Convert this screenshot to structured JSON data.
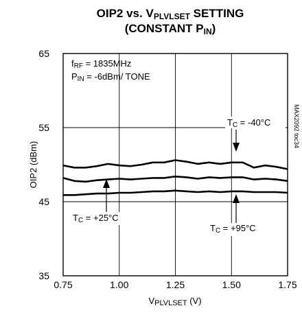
{
  "chart_data": {
    "type": "line",
    "title_line1": "OIP2 vs. VPLVLSET SETTING",
    "title_line2": "(CONSTANT PIN)",
    "xlabel": "VPLVLSET (V)",
    "ylabel": "OIP2 (dBm)",
    "xlim": [
      0.75,
      1.75
    ],
    "ylim": [
      35,
      65
    ],
    "xticks": [
      "0.75",
      "1.00",
      "1.25",
      "1.50",
      "1.75"
    ],
    "yticks": [
      "35",
      "45",
      "55",
      "65"
    ],
    "grid": true,
    "conditions": [
      "fRF = 1835MHz",
      "PIN = -6dBm/ TONE"
    ],
    "figure_code": "MAX2092 toc34",
    "series": [
      {
        "name": "TC = -40°C",
        "x": [
          0.75,
          0.8,
          0.85,
          0.9,
          0.95,
          1.0,
          1.05,
          1.1,
          1.15,
          1.2,
          1.25,
          1.3,
          1.35,
          1.4,
          1.45,
          1.5,
          1.55,
          1.6,
          1.65,
          1.7,
          1.75
        ],
        "y": [
          49.9,
          49.6,
          49.6,
          49.8,
          50.1,
          49.9,
          49.8,
          50.0,
          50.3,
          50.3,
          50.6,
          50.4,
          50.1,
          50.3,
          50.1,
          50.3,
          50.3,
          49.6,
          49.9,
          49.7,
          49.4
        ]
      },
      {
        "name": "TC = +25°C",
        "x": [
          0.75,
          0.8,
          0.85,
          0.9,
          0.95,
          1.0,
          1.05,
          1.1,
          1.15,
          1.2,
          1.25,
          1.3,
          1.35,
          1.4,
          1.45,
          1.5,
          1.55,
          1.6,
          1.65,
          1.7,
          1.75
        ],
        "y": [
          48.2,
          47.8,
          47.7,
          47.9,
          48.0,
          48.1,
          48.0,
          48.1,
          48.2,
          48.2,
          48.4,
          48.3,
          48.1,
          48.3,
          48.2,
          48.3,
          48.3,
          48.0,
          48.1,
          48.0,
          47.8
        ]
      },
      {
        "name": "TC = +95°C",
        "x": [
          0.75,
          0.8,
          0.85,
          0.9,
          0.95,
          1.0,
          1.05,
          1.1,
          1.15,
          1.2,
          1.25,
          1.3,
          1.35,
          1.4,
          1.45,
          1.5,
          1.55,
          1.6,
          1.65,
          1.7,
          1.75
        ],
        "y": [
          45.9,
          45.9,
          46.0,
          46.1,
          46.1,
          46.2,
          46.2,
          46.3,
          46.4,
          46.4,
          46.5,
          46.4,
          46.3,
          46.4,
          46.3,
          46.4,
          46.4,
          46.3,
          46.3,
          46.3,
          46.2
        ]
      }
    ]
  }
}
